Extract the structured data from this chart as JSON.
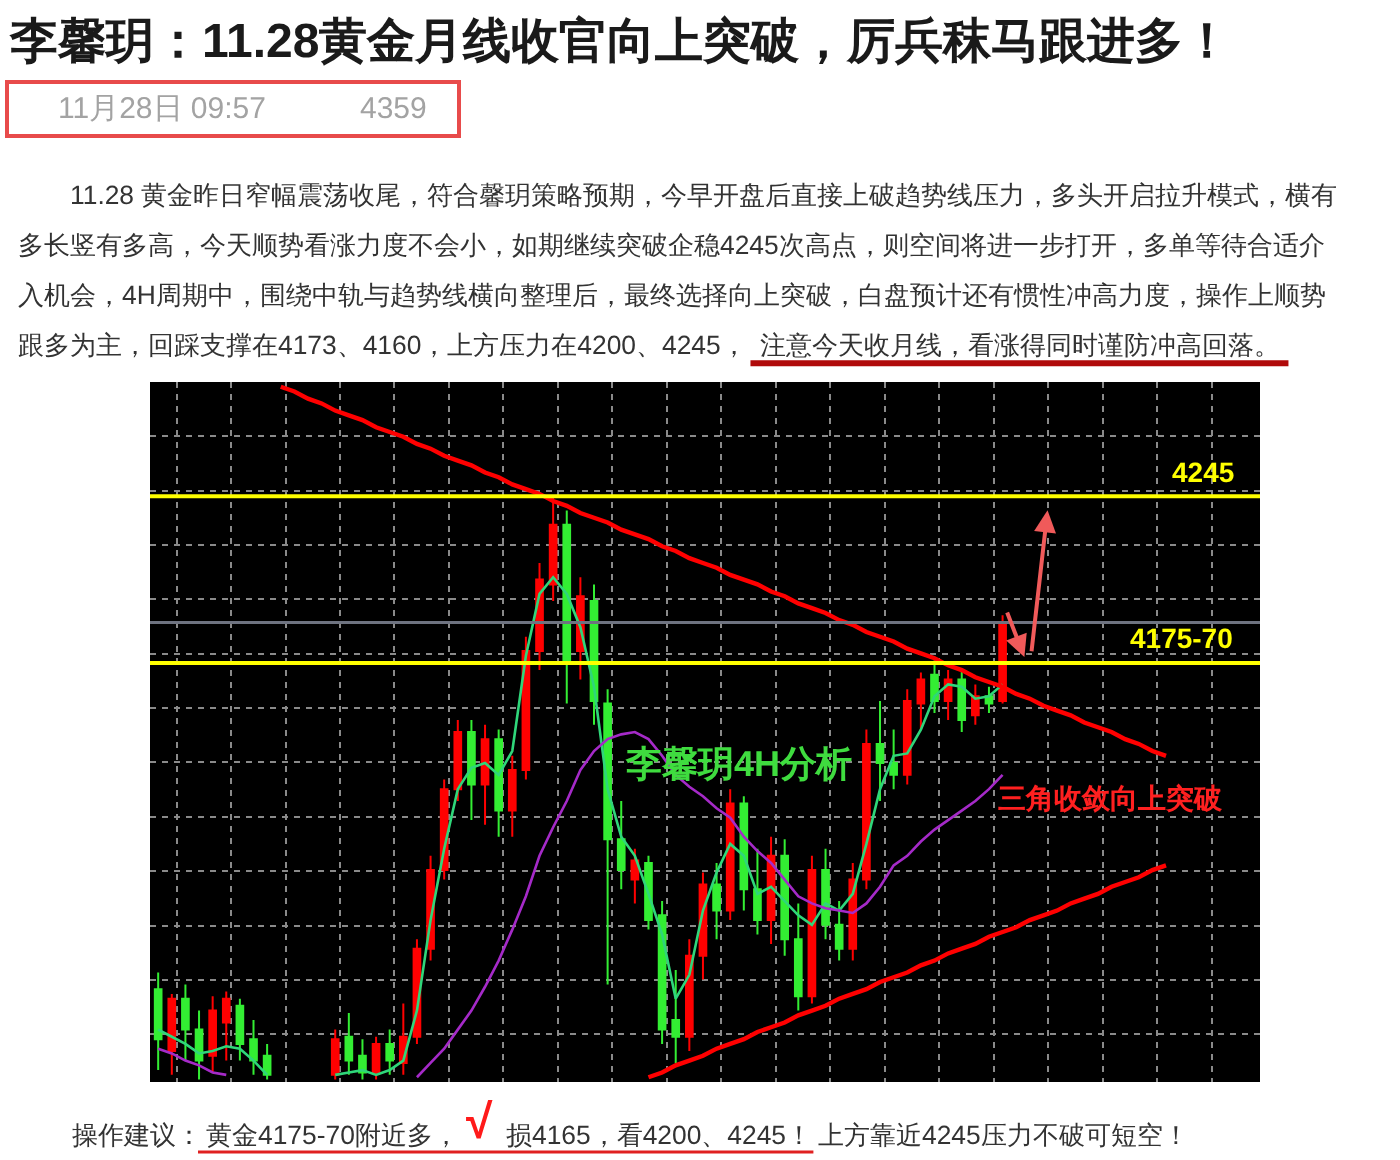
{
  "chart_data": {
    "type": "candlestick",
    "title": "李馨玥：11.28黄金月线收官向上突破，厉兵秣马跟进多！",
    "annotations": [
      "11月28日 09:57",
      "4359",
      "11.28 黄金昨日窄幅震荡收尾，符合馨玥策略预期，今早开盘后直接上破趋势线压力，多头开启拉升模式，横有多长竖有多高，今天顺势看涨力度不会小，如期继续突破企稳4245次高点，则空间将进一步打开，多单等待合适介入机会，4H周期中，围绕中轨与趋势线横向整理后，最终选择向上突破，白盘预计还有惯性冲高力度，操作上顺势",
      "跟多为主，回踩支撑在4173、4160，上方压力在4200、4245，",
      "注意今天收月线，看涨得同时谨防冲高回落。",
      "李馨玥4H分析",
      "三角收敛向上突破",
      "操作建议：",
      "黄金4175-70附近多，",
      "√",
      "损4165，看4200、4245！",
      "上方靠近4245压力不破可短空！"
    ],
    "ylim": [
      3999,
      4293
    ],
    "tick_labels": false,
    "grid": true,
    "categories": [
      null,
      null,
      null,
      null,
      null,
      null,
      null,
      null,
      null,
      null,
      null,
      null,
      null,
      null,
      null,
      null,
      null,
      null,
      null,
      null,
      null,
      null,
      null,
      null,
      null,
      null,
      null,
      null,
      null,
      null,
      null,
      null,
      null,
      null,
      null,
      null,
      null,
      null,
      null,
      null,
      null,
      null,
      null,
      null,
      null,
      null,
      null,
      null,
      null,
      null,
      null,
      null,
      null,
      null,
      null,
      null,
      null,
      null,
      null,
      null,
      null,
      null,
      null,
      null,
      null,
      null,
      null,
      null,
      null,
      null,
      null,
      null,
      null,
      null,
      null
    ],
    "ohlc": [
      [
        4038,
        4045,
        4004,
        4017
      ],
      [
        4012,
        4036,
        4002,
        4034
      ],
      [
        4034,
        4040,
        4008,
        4021
      ],
      [
        4021,
        4029,
        4000,
        4008
      ],
      [
        4010,
        4035,
        4003,
        4029
      ],
      [
        4024,
        4037,
        4008,
        4034
      ],
      [
        4031,
        4034,
        4008,
        4015
      ],
      [
        4017,
        4025,
        4002,
        4008
      ],
      [
        4010,
        4015,
        4000,
        4002
      ],
      null,
      null,
      null,
      null,
      [
        4002,
        4021,
        4000,
        4017
      ],
      [
        4018,
        4028,
        4002,
        4008
      ],
      [
        4010,
        4017,
        4000,
        4003
      ],
      [
        4003,
        4018,
        4000,
        4015
      ],
      [
        4015,
        4021,
        4002,
        4008
      ],
      [
        4007,
        4032,
        4002,
        4018
      ],
      [
        4018,
        4059,
        4015,
        4055
      ],
      [
        4055,
        4094,
        4050,
        4088
      ],
      [
        4088,
        4126,
        4084,
        4122
      ],
      [
        4122,
        4151,
        4117,
        4146
      ],
      [
        4146,
        4151,
        4109,
        4124
      ],
      [
        4124,
        4149,
        4107,
        4143
      ],
      [
        4143,
        4147,
        4102,
        4113
      ],
      [
        4113,
        4136,
        4102,
        4130
      ],
      [
        4130,
        4186,
        4126,
        4180
      ],
      [
        4180,
        4217,
        4172,
        4210
      ],
      [
        4208,
        4245,
        4201,
        4233
      ],
      [
        4233,
        4239,
        4158,
        4176
      ],
      [
        4180,
        4211,
        4168,
        4203
      ],
      [
        4201,
        4208,
        4149,
        4159
      ],
      [
        4158,
        4164,
        4040,
        4101
      ],
      [
        4101,
        4117,
        4080,
        4088
      ],
      [
        4084,
        4097,
        4074,
        4092
      ],
      [
        4091,
        4094,
        4063,
        4067
      ],
      [
        4069,
        4075,
        4015,
        4021
      ],
      [
        4025,
        4046,
        4007,
        4018
      ],
      [
        4018,
        4059,
        4012,
        4052
      ],
      [
        4052,
        4087,
        4042,
        4082
      ],
      [
        4082,
        4091,
        4059,
        4071
      ],
      [
        4071,
        4122,
        4067,
        4116
      ],
      [
        4116,
        4119,
        4071,
        4080
      ],
      [
        4080,
        4097,
        4061,
        4067
      ],
      [
        4067,
        4102,
        4057,
        4094
      ],
      [
        4094,
        4101,
        4052,
        4059
      ],
      [
        4059,
        4074,
        4029,
        4035
      ],
      [
        4035,
        4094,
        4032,
        4088
      ],
      [
        4088,
        4097,
        4059,
        4065
      ],
      [
        4065,
        4075,
        4050,
        4055
      ],
      [
        4055,
        4091,
        4050,
        4084
      ],
      [
        4084,
        4147,
        4080,
        4141
      ],
      [
        4141,
        4159,
        4117,
        4133
      ],
      [
        4133,
        4147,
        4122,
        4128
      ],
      [
        4128,
        4164,
        4124,
        4159
      ],
      [
        4158,
        4171,
        4147,
        4168
      ],
      [
        4170,
        4176,
        4154,
        4159
      ],
      [
        4159,
        4172,
        4151,
        4168
      ],
      [
        4168,
        4172,
        4146,
        4151
      ],
      [
        4153,
        4166,
        4149,
        4161
      ],
      [
        4161,
        4165,
        4154,
        4158
      ],
      [
        4159,
        4195,
        4158,
        4192
      ],
      null,
      null,
      null,
      null,
      null,
      null,
      null,
      null,
      null,
      null,
      null,
      null
    ],
    "colors": [
      "#33ee33",
      "#ff0000",
      "#33ee33",
      "#33ee33",
      "#ff0000",
      "#ff0000",
      "#33ee33",
      "#33ee33",
      "#33ee33",
      null,
      null,
      null,
      null,
      "#ff0000",
      "#33ee33",
      "#33ee33",
      "#ff0000",
      "#33ee33",
      "#ff0000",
      "#ff0000",
      "#ff0000",
      "#ff0000",
      "#ff0000",
      "#33ee33",
      "#ff0000",
      "#33ee33",
      "#ff0000",
      "#ff0000",
      "#ff0000",
      "#ff0000",
      "#33ee33",
      "#ff0000",
      "#33ee33",
      "#33ee33",
      "#33ee33",
      "#ff0000",
      "#33ee33",
      "#33ee33",
      "#33ee33",
      "#ff0000",
      "#ff0000",
      "#33ee33",
      "#ff0000",
      "#33ee33",
      "#33ee33",
      "#ff0000",
      "#33ee33",
      "#33ee33",
      "#ff0000",
      "#33ee33",
      "#33ee33",
      "#ff0000",
      "#ff0000",
      "#33ee33",
      "#33ee33",
      "#ff0000",
      "#ff0000",
      "#33ee33",
      "#ff0000",
      "#33ee33",
      "#ff0000",
      "#33ee33",
      "#ff0000",
      null,
      null,
      null,
      null,
      null,
      null,
      null,
      null,
      null,
      null,
      null,
      null
    ],
    "series": [
      {
        "type": "line",
        "color": "#2fd67a",
        "values": [
          4021,
          4018,
          4015,
          4011,
          4012,
          4014,
          4013,
          4008,
          4002,
          null,
          null,
          null,
          null,
          4002,
          4003,
          4004,
          4002,
          4004,
          4008,
          4029,
          4067,
          4097,
          4122,
          4131,
          4133,
          4128,
          4138,
          4178,
          4204,
          4211,
          4204,
          4190,
          4165,
          4122,
          4102,
          4094,
          4078,
          4061,
          4034,
          4044,
          4071,
          4087,
          4099,
          4094,
          4078,
          4081,
          4075,
          4069,
          4065,
          4074,
          4071,
          4078,
          4099,
          4122,
          4136,
          4137,
          4147,
          4161,
          4166,
          4165,
          4160,
          4161,
          4166,
          null,
          null,
          null,
          null,
          null,
          null,
          null,
          null,
          null,
          null,
          null,
          null
        ]
      },
      {
        "type": "line",
        "color": "#a52ac8",
        "values": [
          4013,
          4011,
          4008,
          4006,
          4003,
          4002,
          null,
          null,
          null,
          null,
          null,
          null,
          null,
          null,
          null,
          null,
          null,
          null,
          null,
          4001,
          4007,
          4013,
          4021,
          4029,
          4039,
          4050,
          4063,
          4077,
          4094,
          4106,
          4117,
          4130,
          4138,
          4143,
          4145,
          4146,
          4143,
          4136,
          4128,
          4123,
          4119,
          4114,
          4110,
          4102,
          4096,
          4091,
          4084,
          4077,
          4074,
          4072,
          4071,
          4070,
          4074,
          4081,
          4090,
          4094,
          4100,
          4105,
          4109,
          4113,
          4117,
          4122,
          4128,
          null,
          null,
          null,
          null,
          null,
          null,
          null,
          null,
          null,
          null,
          null,
          null
        ]
      },
      {
        "type": "line",
        "color": "#ff0000",
        "values": [
          null,
          null,
          null,
          null,
          null,
          null,
          null,
          null,
          null,
          4291,
          4289,
          4286,
          4284,
          4281,
          4279,
          4277,
          4274,
          4272,
          4270,
          4267,
          4265,
          4262,
          4260,
          4258,
          4255,
          4253,
          4250,
          4248,
          4246,
          4243,
          4241,
          4238,
          4236,
          4234,
          4231,
          4229,
          4227,
          4224,
          4222,
          4219,
          4217,
          4215,
          4212,
          4210,
          4208,
          4205,
          4203,
          4200,
          4198,
          4196,
          4193,
          4191,
          4188,
          4186,
          4184,
          4181,
          4179,
          4177,
          4174,
          4172,
          4169,
          4167,
          4165,
          4162,
          4160,
          4157,
          4155,
          4153,
          4150,
          4148,
          4146,
          4143,
          4141,
          4138,
          4136
        ]
      },
      {
        "type": "line",
        "color": "#ff0000",
        "values": [
          null,
          null,
          null,
          null,
          null,
          null,
          null,
          null,
          null,
          null,
          null,
          null,
          null,
          null,
          null,
          null,
          null,
          null,
          null,
          null,
          null,
          null,
          null,
          null,
          null,
          null,
          null,
          null,
          null,
          null,
          null,
          null,
          null,
          null,
          null,
          null,
          4001,
          4003,
          4006,
          4008,
          4010,
          4013,
          4015,
          4017,
          4020,
          4022,
          4024,
          4027,
          4029,
          4031,
          4034,
          4036,
          4038,
          4041,
          4043,
          4045,
          4048,
          4050,
          4053,
          4055,
          4057,
          4060,
          4062,
          4064,
          4067,
          4069,
          4071,
          4074,
          4076,
          4078,
          4081,
          4083,
          4085,
          4088,
          4090
        ]
      }
    ],
    "ref_lines": [
      {
        "axis": "y",
        "value": 4245,
        "label": "4245",
        "color": "#ffff00"
      },
      {
        "axis": "y",
        "value": 4175,
        "label": "4175-70",
        "color": "#ffff00"
      },
      {
        "axis": "y",
        "value": 4192,
        "color": "#6e7380"
      }
    ]
  }
}
